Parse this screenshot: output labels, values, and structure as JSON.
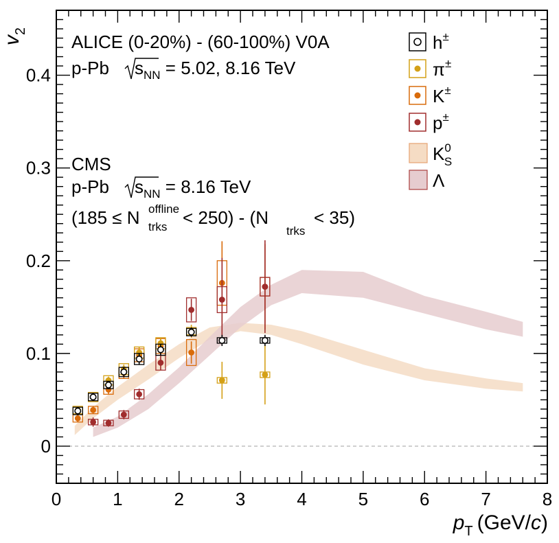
{
  "chart_data": {
    "type": "scatter",
    "title": "",
    "ylabel": "v",
    "ylabel_sub": "2",
    "xlabel_p": "p",
    "xlabel_sub": "T",
    "xlabel_unit_pre": "(GeV/",
    "xlabel_unit_c": "c",
    "xlabel_unit_post": ")",
    "xlim": [
      0,
      8
    ],
    "ylim": [
      -0.04,
      0.47
    ],
    "x_ticks": [
      0,
      1,
      2,
      3,
      4,
      5,
      6,
      7,
      8
    ],
    "x_tick_labels": [
      "0",
      "1",
      "2",
      "3",
      "4",
      "5",
      "6",
      "7",
      "8"
    ],
    "y_ticks": [
      0,
      0.1,
      0.2,
      0.3,
      0.4
    ],
    "y_tick_labels": [
      "0",
      "0.1",
      "0.2",
      "0.3",
      "0.4"
    ],
    "zero_line": true,
    "colors": {
      "hpm": "#000000",
      "pion": "#d4a017",
      "kaon": "#d96b0b",
      "proton": "#a02d2d",
      "k0s_band": "#f5dcc4",
      "lambda_band": "#e6cccf",
      "zero_line": "#aaaaaa"
    },
    "annotations": {
      "alice_line1": "ALICE  (0-20%) - (60-100%) V0A",
      "alice_line2_pre": "p-Pb ",
      "alice_line2_s": "s",
      "alice_line2_sub": "NN",
      "alice_line2_post": " = 5.02, 8.16 TeV",
      "cms_line1": "CMS",
      "cms_line2_pre": "p-Pb ",
      "cms_line2_s": "s",
      "cms_line2_sub": "NN",
      "cms_line2_post": " = 8.16 TeV",
      "cms_line3_a": "(185 ≤ N",
      "cms_line3_sup": "offline",
      "cms_line3_sub1": "trks",
      "cms_line3_b": " < 250) - (N",
      "cms_line3_sub2": "trks",
      "cms_line3_c": " < 35)"
    },
    "legend": [
      {
        "key": "hpm",
        "label": "h",
        "sup": "±",
        "sub": ""
      },
      {
        "key": "pion",
        "label": "π",
        "sup": "±",
        "sub": ""
      },
      {
        "key": "kaon",
        "label": "K",
        "sup": "±",
        "sub": ""
      },
      {
        "key": "proton",
        "label": "p",
        "sup": "±",
        "sub": ""
      },
      {
        "key": "k0s_band",
        "label": "K",
        "sup": "0",
        "sub": "S"
      },
      {
        "key": "lambda_band",
        "label": "Λ",
        "sup": "",
        "sub": ""
      }
    ],
    "series": [
      {
        "name": "h±",
        "key": "hpm",
        "marker": "open-circle",
        "points": [
          {
            "x": 0.35,
            "y": 0.038,
            "err": 0.004,
            "sys": 0.004
          },
          {
            "x": 0.6,
            "y": 0.053,
            "err": 0.003,
            "sys": 0.004
          },
          {
            "x": 0.85,
            "y": 0.066,
            "err": 0.004,
            "sys": 0.004
          },
          {
            "x": 1.1,
            "y": 0.08,
            "err": 0.005,
            "sys": 0.005
          },
          {
            "x": 1.35,
            "y": 0.094,
            "err": 0.006,
            "sys": 0.006
          },
          {
            "x": 1.7,
            "y": 0.104,
            "err": 0.006,
            "sys": 0.006
          },
          {
            "x": 2.2,
            "y": 0.123,
            "err": 0.005,
            "sys": 0.004
          },
          {
            "x": 2.7,
            "y": 0.114,
            "err": 0.006,
            "sys": 0.003
          },
          {
            "x": 3.4,
            "y": 0.114,
            "err": 0.006,
            "sys": 0.003
          }
        ]
      },
      {
        "name": "π±",
        "key": "pion",
        "marker": "filled-circle",
        "points": [
          {
            "x": 0.35,
            "y": 0.039,
            "err": 0.003,
            "sys": 0.004
          },
          {
            "x": 0.6,
            "y": 0.053,
            "err": 0.003,
            "sys": 0.005
          },
          {
            "x": 0.85,
            "y": 0.071,
            "err": 0.004,
            "sys": 0.005
          },
          {
            "x": 1.1,
            "y": 0.083,
            "err": 0.005,
            "sys": 0.006
          },
          {
            "x": 1.35,
            "y": 0.101,
            "err": 0.006,
            "sys": 0.006
          },
          {
            "x": 1.7,
            "y": 0.111,
            "err": 0.006,
            "sys": 0.006
          },
          {
            "x": 2.2,
            "y": 0.124,
            "err": 0.007,
            "sys": 0.004
          },
          {
            "x": 2.7,
            "y": 0.071,
            "err": 0.02,
            "sys": 0.003
          },
          {
            "x": 3.4,
            "y": 0.077,
            "err": 0.032,
            "sys": 0.003
          }
        ]
      },
      {
        "name": "K±",
        "key": "kaon",
        "marker": "filled-circle",
        "points": [
          {
            "x": 0.35,
            "y": 0.03,
            "err": 0.004,
            "sys": 0.004
          },
          {
            "x": 0.6,
            "y": 0.039,
            "err": 0.004,
            "sys": 0.004
          },
          {
            "x": 0.85,
            "y": 0.061,
            "err": 0.005,
            "sys": 0.005
          },
          {
            "x": 1.1,
            "y": 0.079,
            "err": 0.006,
            "sys": 0.006
          },
          {
            "x": 1.35,
            "y": 0.098,
            "err": 0.007,
            "sys": 0.007
          },
          {
            "x": 1.7,
            "y": 0.108,
            "err": 0.008,
            "sys": 0.008
          },
          {
            "x": 2.2,
            "y": 0.101,
            "err": 0.012,
            "sys": 0.014
          },
          {
            "x": 2.7,
            "y": 0.176,
            "err": 0.045,
            "sys": 0.024
          },
          {
            "x": 3.4,
            "y": 0.172,
            "err": 0.046,
            "sys": 0.01
          }
        ]
      },
      {
        "name": "p±",
        "key": "proton",
        "marker": "filled-circle",
        "points": [
          {
            "x": 0.6,
            "y": 0.026,
            "err": 0.005,
            "sys": 0.003
          },
          {
            "x": 0.85,
            "y": 0.025,
            "err": 0.004,
            "sys": 0.003
          },
          {
            "x": 1.1,
            "y": 0.034,
            "err": 0.005,
            "sys": 0.004
          },
          {
            "x": 1.35,
            "y": 0.056,
            "err": 0.006,
            "sys": 0.005
          },
          {
            "x": 1.7,
            "y": 0.09,
            "err": 0.008,
            "sys": 0.008
          },
          {
            "x": 2.2,
            "y": 0.147,
            "err": 0.012,
            "sys": 0.013
          },
          {
            "x": 2.7,
            "y": 0.158,
            "err": 0.045,
            "sys": 0.014
          },
          {
            "x": 3.4,
            "y": 0.172,
            "err": 0.05,
            "sys": 0.01
          }
        ]
      }
    ],
    "bands": [
      {
        "name": "K0S (CMS)",
        "key": "k0s_band",
        "x": [
          0.3,
          0.6,
          1.0,
          1.5,
          2.0,
          2.5,
          3.0,
          3.5,
          4.0,
          5.0,
          6.0,
          7.0,
          7.6
        ],
        "low": [
          0.012,
          0.03,
          0.05,
          0.072,
          0.095,
          0.115,
          0.124,
          0.12,
          0.11,
          0.088,
          0.071,
          0.062,
          0.059
        ],
        "high": [
          0.022,
          0.042,
          0.064,
          0.088,
          0.11,
          0.128,
          0.133,
          0.131,
          0.124,
          0.104,
          0.084,
          0.073,
          0.068
        ]
      },
      {
        "name": "Λ (CMS)",
        "key": "lambda_band",
        "x": [
          0.6,
          1.0,
          1.5,
          2.0,
          2.5,
          3.0,
          3.5,
          4.0,
          5.0,
          6.0,
          7.0,
          7.6
        ],
        "low": [
          0.01,
          0.02,
          0.04,
          0.068,
          0.098,
          0.128,
          0.152,
          0.165,
          0.16,
          0.143,
          0.126,
          0.118
        ],
        "high": [
          0.02,
          0.032,
          0.056,
          0.085,
          0.118,
          0.15,
          0.174,
          0.19,
          0.188,
          0.162,
          0.145,
          0.134
        ]
      }
    ]
  }
}
